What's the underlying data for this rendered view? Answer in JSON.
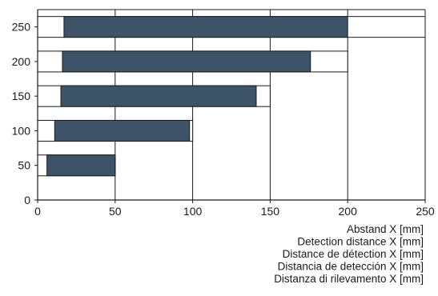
{
  "chart_data": {
    "type": "bar",
    "orientation": "horizontal",
    "categories": [
      "50",
      "100",
      "150",
      "200",
      "250"
    ],
    "series": [
      {
        "ranges": [
          {
            "from": 6,
            "to": 50
          },
          {
            "from": 11,
            "to": 98
          },
          {
            "from": 15,
            "to": 141
          },
          {
            "from": 16,
            "to": 176
          },
          {
            "from": 17,
            "to": 200
          }
        ]
      }
    ],
    "outline_ends": [
      50,
      100,
      150,
      200,
      250
    ],
    "xlim": [
      0,
      250
    ],
    "ylim": [
      0,
      275
    ],
    "x_ticks": [
      "0",
      "50",
      "100",
      "150",
      "200",
      "250"
    ],
    "y_ticks": [
      "0",
      "50",
      "100",
      "150",
      "200",
      "250"
    ],
    "xlabel_lines": [
      "Abstand X [mm]",
      "Detection distance X [mm]",
      "Distance de détection X [mm]",
      "Distancia de detección X [mm]",
      "Distanza di rilevamento X [mm]"
    ],
    "title": "",
    "ylabel": "",
    "grid": "vertical",
    "colors": {
      "bar_fill": "#3d5468",
      "axis": "#1a1a1a",
      "grid": "#1a1a1a",
      "outline": "#1a1a1a"
    }
  }
}
